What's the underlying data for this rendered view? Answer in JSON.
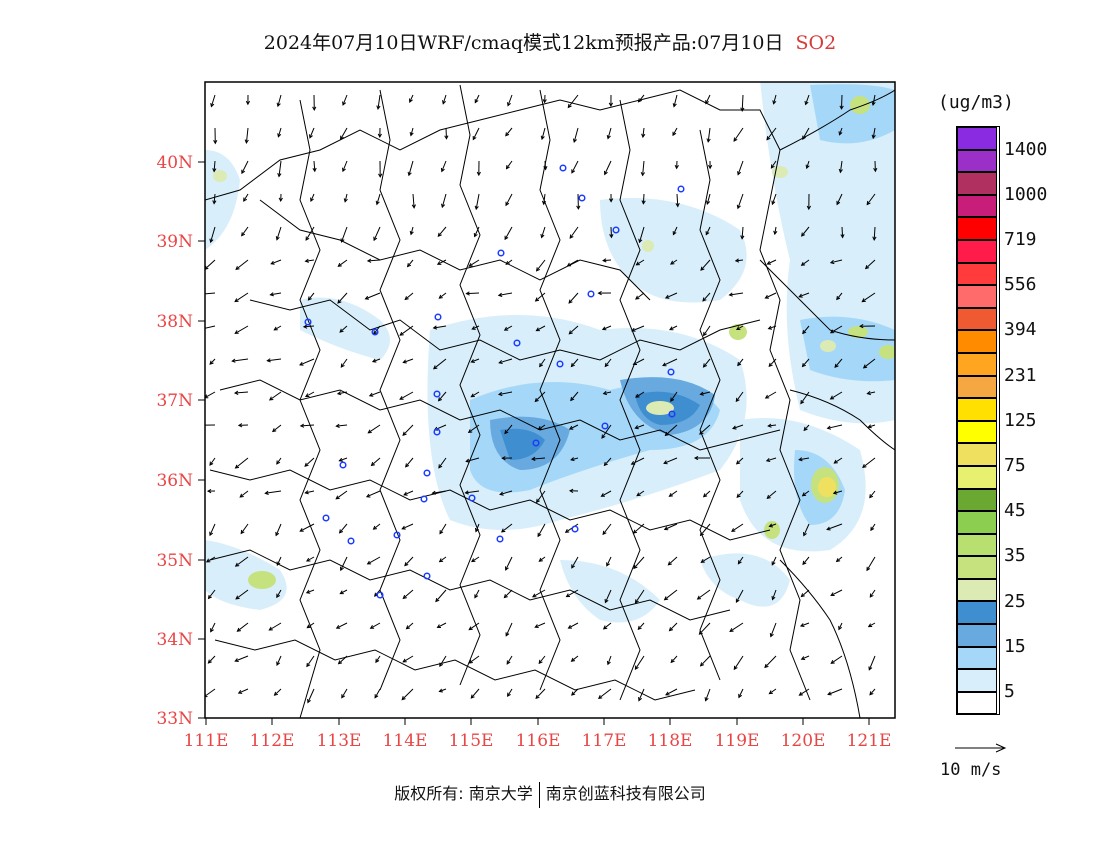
{
  "title": {
    "main": "2024年07月10日WRF/cmaq模式12km预报产品:07月10日",
    "pollutant": "SO2",
    "pollutant_color": "#d83a3a"
  },
  "map": {
    "lat_labels": [
      "40N",
      "39N",
      "38N",
      "37N",
      "36N",
      "35N",
      "34N",
      "33N"
    ],
    "lon_labels": [
      "111E",
      "112E",
      "113E",
      "114E",
      "115E",
      "116E",
      "117E",
      "118E",
      "119E",
      "120E",
      "121E"
    ],
    "label_color": "#e84545"
  },
  "legend": {
    "units": "(ug/m3)",
    "colors": [
      "#8a2be2",
      "#9b30c8",
      "#b03060",
      "#c81e7a",
      "#ff0000",
      "#ff1c4a",
      "#ff3b3b",
      "#ff6a6a",
      "#f05a32",
      "#ff8c00",
      "#ffa520",
      "#f5a742",
      "#ffe000",
      "#ffff00",
      "#f0e060",
      "#e8f070",
      "#6aa832",
      "#8ccf50",
      "#b8e070",
      "#c6e27e",
      "#dceab4",
      "#3f8fd0",
      "#68aae0",
      "#a5d8f8",
      "#d8eefa",
      "#ffffff"
    ],
    "labels": [
      "1400",
      "1000",
      "719",
      "556",
      "394",
      "231",
      "125",
      "75",
      "45",
      "35",
      "25",
      "15",
      "5"
    ]
  },
  "wind_reference": "10 m/s",
  "footer": {
    "copyright": "版权所有: 南京大学",
    "company": "南京创蓝科技有限公司"
  }
}
